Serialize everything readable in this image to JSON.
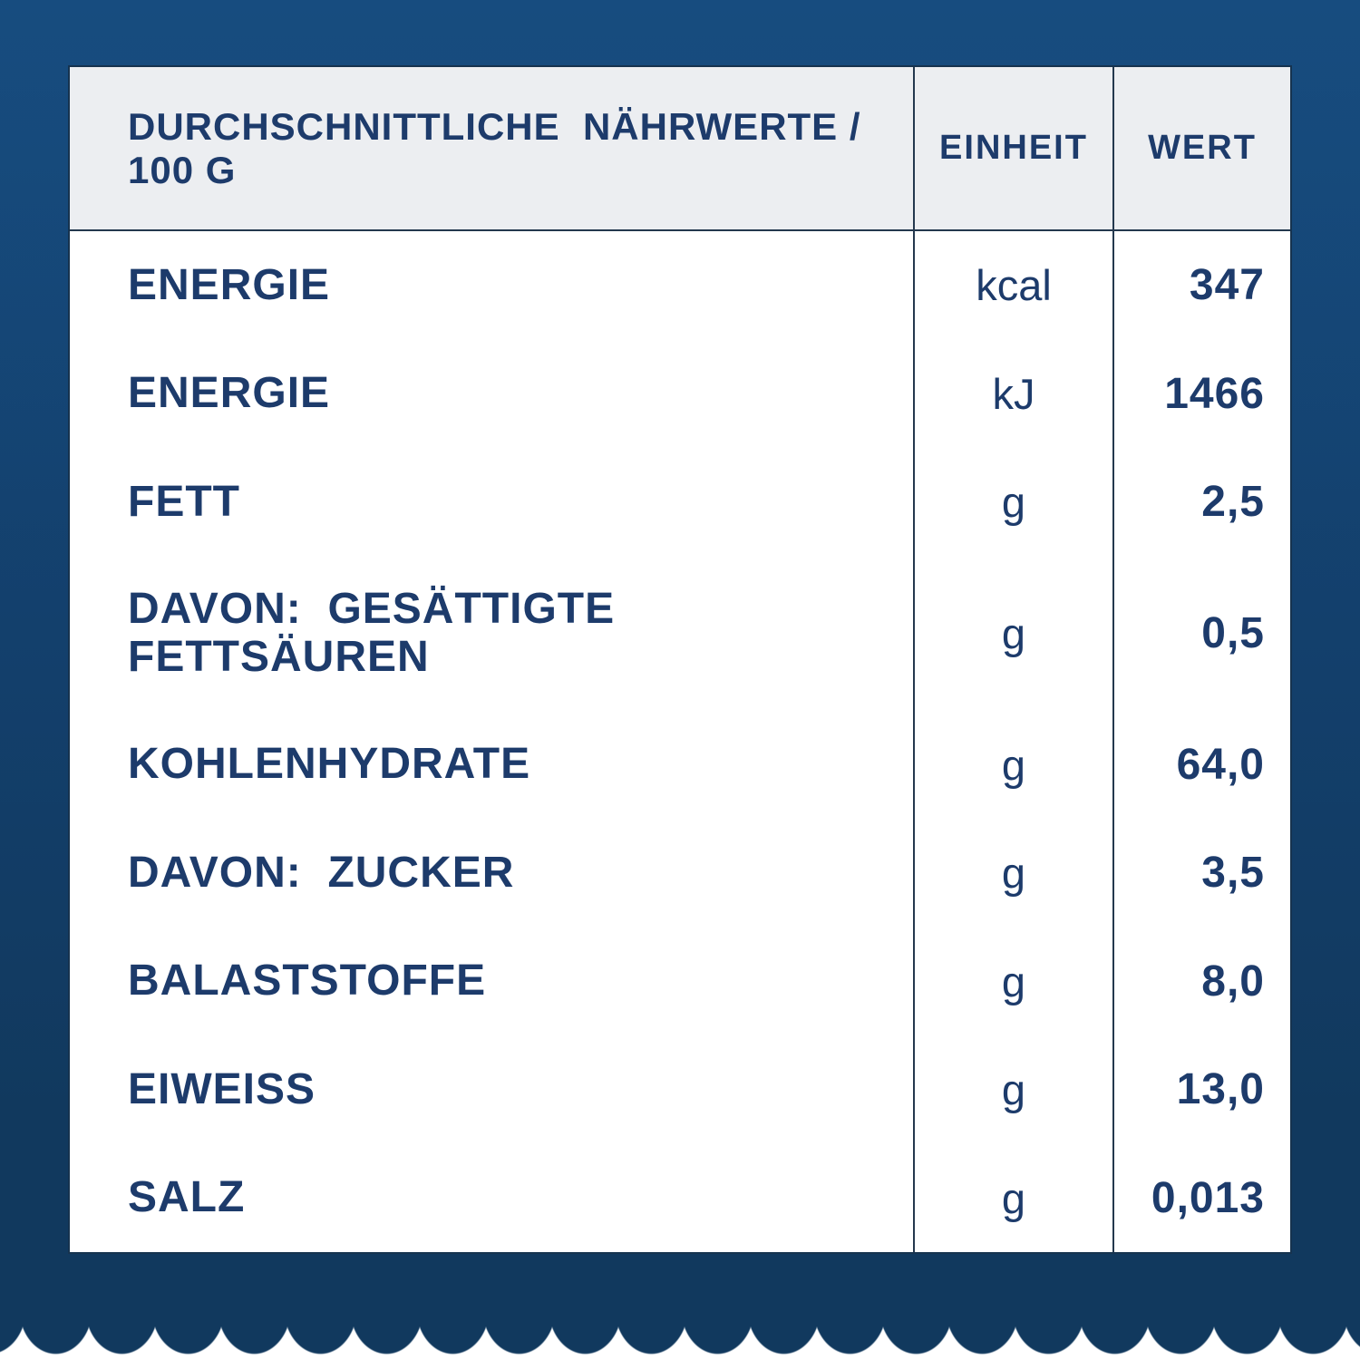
{
  "colors": {
    "background_top": "#15497C",
    "background_bottom": "#11395E",
    "card_background": "#FFFFFF",
    "header_background": "#ECEEF1",
    "text_navy": "#1D3B6B",
    "grid_line": "#24384E"
  },
  "table": {
    "headers": {
      "label": "DURCHSCHNITTLICHE  NÄHRWERTE / 100 G",
      "unit": "EINHEIT",
      "value": "WERT"
    },
    "rows": [
      {
        "label": "ENERGIE",
        "unit": "kcal",
        "value": "347"
      },
      {
        "label": "ENERGIE",
        "unit": "kJ",
        "value": "1466"
      },
      {
        "label": "FETT",
        "unit": "g",
        "value": "2,5"
      },
      {
        "label": "DAVON:  GESÄTTIGTE\nFETTSÄUREN",
        "unit": "g",
        "value": "0,5"
      },
      {
        "label": "KOHLENHYDRATE",
        "unit": "g",
        "value": "64,0"
      },
      {
        "label": "DAVON:  ZUCKER",
        "unit": "g",
        "value": "3,5"
      },
      {
        "label": "BALASTSTOFFE",
        "unit": "g",
        "value": "8,0"
      },
      {
        "label": "EIWEISS",
        "unit": "g",
        "value": "13,0"
      },
      {
        "label": "SALZ",
        "unit": "g",
        "value": "0,013"
      }
    ]
  }
}
